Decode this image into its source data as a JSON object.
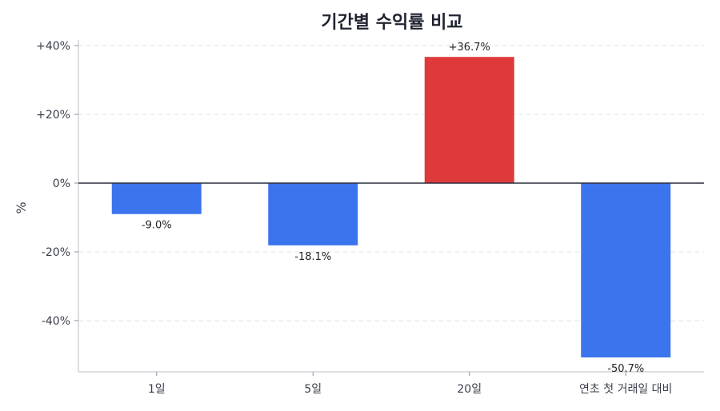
{
  "chart_data": {
    "type": "bar",
    "title": "기간별 수익률 비교",
    "xlabel": "",
    "ylabel": "%",
    "ylim": [
      -54,
      45
    ],
    "yticks": [
      40,
      20,
      0,
      -20,
      -40
    ],
    "ytick_labels": [
      "+40%",
      "+20%",
      "0%",
      "-20%",
      "-40%"
    ],
    "categories": [
      "1일",
      "5일",
      "20일",
      "연초 첫 거래일 대비"
    ],
    "values": [
      -9.0,
      -18.1,
      36.7,
      -50.7
    ],
    "value_labels": [
      "-9.0%",
      "-18.1%",
      "+36.7%",
      "-50.7%"
    ],
    "colors": {
      "negative": "#3b74ed",
      "positive": "#df3a3a"
    },
    "grid": "horizontal-dashed"
  }
}
